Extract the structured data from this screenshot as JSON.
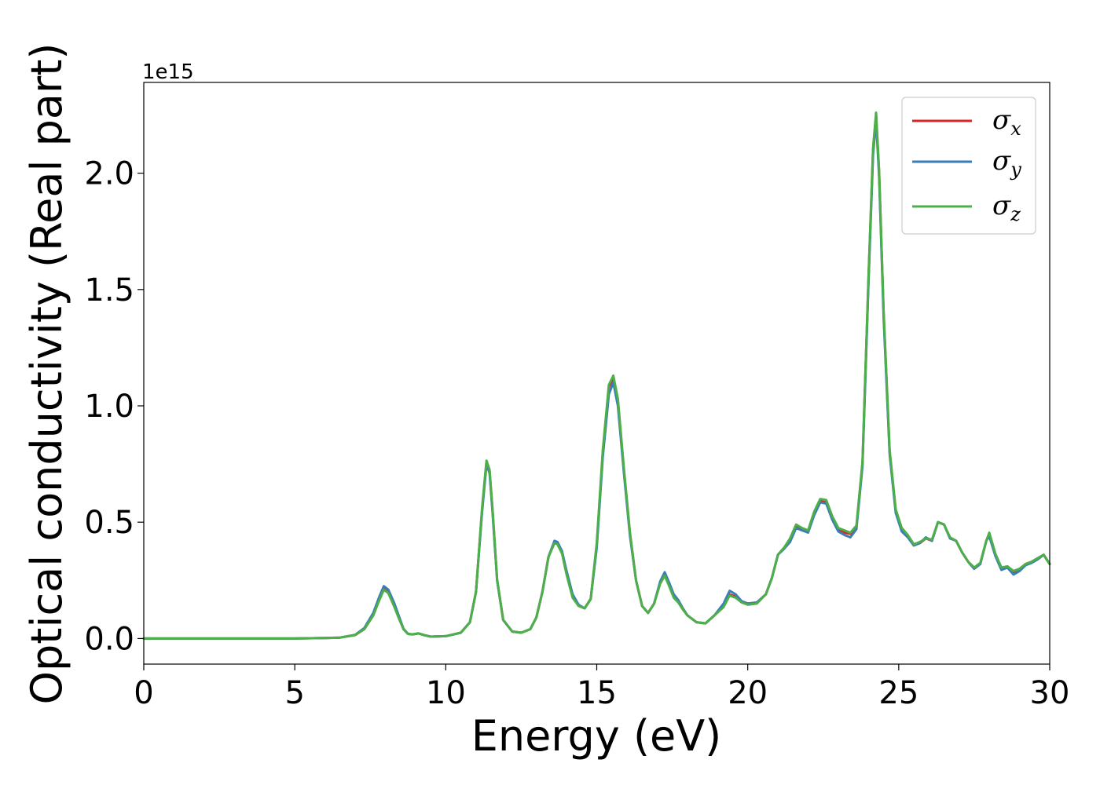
{
  "chart_data": {
    "type": "line",
    "xlabel": "Energy (eV)",
    "ylabel": "Optical conductivity (Real part)",
    "y_offset_text": "1e15",
    "y_scale": 1000000000000000.0,
    "xlim": [
      0,
      30
    ],
    "ylim": [
      -0.11,
      2.39
    ],
    "x_ticks": [
      0,
      5,
      10,
      15,
      20,
      25,
      30
    ],
    "x_tick_labels": [
      "0",
      "5",
      "10",
      "15",
      "20",
      "25",
      "30"
    ],
    "y_ticks": [
      0.0,
      0.5,
      1.0,
      1.5,
      2.0
    ],
    "y_tick_labels": [
      "0.0",
      "0.5",
      "1.0",
      "1.5",
      "2.0"
    ],
    "grid": false,
    "legend_position": "top-right",
    "series": [
      {
        "name": "σx",
        "legend_base": "σ",
        "legend_sub": "x",
        "color": "#d62728",
        "x": [
          0,
          5,
          6,
          6.5,
          7.0,
          7.3,
          7.6,
          7.8,
          7.95,
          8.1,
          8.3,
          8.45,
          8.6,
          8.75,
          8.9,
          9.1,
          9.3,
          9.5,
          10.0,
          10.5,
          10.8,
          11.0,
          11.2,
          11.35,
          11.45,
          11.55,
          11.7,
          11.9,
          12.2,
          12.5,
          12.8,
          13.0,
          13.2,
          13.4,
          13.6,
          13.7,
          13.85,
          14.0,
          14.2,
          14.4,
          14.6,
          14.8,
          15.0,
          15.2,
          15.4,
          15.55,
          15.7,
          15.9,
          16.1,
          16.3,
          16.5,
          16.7,
          16.9,
          17.1,
          17.25,
          17.4,
          17.55,
          17.7,
          17.85,
          18.0,
          18.3,
          18.6,
          18.9,
          19.2,
          19.4,
          19.6,
          19.8,
          20.0,
          20.3,
          20.6,
          20.8,
          21.0,
          21.2,
          21.4,
          21.6,
          21.8,
          22.0,
          22.2,
          22.4,
          22.6,
          22.8,
          23.0,
          23.2,
          23.4,
          23.6,
          23.8,
          24.0,
          24.15,
          24.25,
          24.35,
          24.5,
          24.7,
          24.9,
          25.1,
          25.3,
          25.5,
          25.7,
          25.9,
          26.1,
          26.3,
          26.5,
          26.7,
          26.9,
          27.1,
          27.3,
          27.5,
          27.7,
          27.9,
          28.0,
          28.2,
          28.4,
          28.6,
          28.8,
          29.0,
          29.2,
          29.4,
          29.6,
          29.8,
          30.0
        ],
        "y": [
          0.0,
          0.0,
          0.002,
          0.004,
          0.015,
          0.04,
          0.1,
          0.17,
          0.215,
          0.2,
          0.14,
          0.09,
          0.04,
          0.02,
          0.018,
          0.022,
          0.014,
          0.008,
          0.01,
          0.025,
          0.07,
          0.2,
          0.55,
          0.76,
          0.72,
          0.55,
          0.25,
          0.08,
          0.03,
          0.025,
          0.04,
          0.09,
          0.2,
          0.35,
          0.415,
          0.41,
          0.37,
          0.28,
          0.18,
          0.14,
          0.13,
          0.17,
          0.4,
          0.8,
          1.08,
          1.12,
          1.02,
          0.72,
          0.45,
          0.25,
          0.14,
          0.11,
          0.15,
          0.24,
          0.275,
          0.23,
          0.18,
          0.16,
          0.13,
          0.1,
          0.07,
          0.065,
          0.1,
          0.14,
          0.19,
          0.18,
          0.16,
          0.15,
          0.155,
          0.19,
          0.26,
          0.36,
          0.39,
          0.42,
          0.48,
          0.47,
          0.46,
          0.54,
          0.595,
          0.59,
          0.52,
          0.47,
          0.455,
          0.45,
          0.48,
          0.75,
          1.55,
          2.1,
          2.25,
          2.0,
          1.4,
          0.8,
          0.55,
          0.47,
          0.44,
          0.4,
          0.41,
          0.43,
          0.42,
          0.5,
          0.49,
          0.43,
          0.42,
          0.37,
          0.33,
          0.3,
          0.32,
          0.42,
          0.45,
          0.36,
          0.3,
          0.31,
          0.285,
          0.3,
          0.32,
          0.33,
          0.34,
          0.36,
          0.32
        ]
      },
      {
        "name": "σy",
        "legend_base": "σ",
        "legend_sub": "y",
        "color": "#3a7eb8",
        "x": [
          0,
          5,
          6,
          6.5,
          7.0,
          7.3,
          7.6,
          7.8,
          7.95,
          8.1,
          8.3,
          8.45,
          8.6,
          8.75,
          8.9,
          9.1,
          9.3,
          9.5,
          10.0,
          10.5,
          10.8,
          11.0,
          11.2,
          11.35,
          11.45,
          11.55,
          11.7,
          11.9,
          12.2,
          12.5,
          12.8,
          13.0,
          13.2,
          13.4,
          13.6,
          13.7,
          13.85,
          14.0,
          14.2,
          14.4,
          14.6,
          14.8,
          15.0,
          15.2,
          15.4,
          15.55,
          15.7,
          15.9,
          16.1,
          16.3,
          16.5,
          16.7,
          16.9,
          17.1,
          17.25,
          17.4,
          17.55,
          17.7,
          17.85,
          18.0,
          18.3,
          18.6,
          18.9,
          19.2,
          19.4,
          19.6,
          19.8,
          20.0,
          20.3,
          20.6,
          20.8,
          21.0,
          21.2,
          21.4,
          21.6,
          21.8,
          22.0,
          22.2,
          22.4,
          22.6,
          22.8,
          23.0,
          23.2,
          23.4,
          23.6,
          23.8,
          24.0,
          24.15,
          24.25,
          24.35,
          24.5,
          24.7,
          24.9,
          25.1,
          25.3,
          25.5,
          25.7,
          25.9,
          26.1,
          26.3,
          26.5,
          26.7,
          26.9,
          27.1,
          27.3,
          27.5,
          27.7,
          27.9,
          28.0,
          28.2,
          28.4,
          28.6,
          28.8,
          29.0,
          29.2,
          29.4,
          29.6,
          29.8,
          30.0
        ],
        "y": [
          0.0,
          0.0,
          0.002,
          0.004,
          0.016,
          0.045,
          0.11,
          0.18,
          0.225,
          0.21,
          0.15,
          0.095,
          0.042,
          0.02,
          0.018,
          0.022,
          0.014,
          0.008,
          0.01,
          0.025,
          0.07,
          0.2,
          0.54,
          0.75,
          0.71,
          0.54,
          0.25,
          0.08,
          0.03,
          0.025,
          0.04,
          0.09,
          0.2,
          0.35,
          0.42,
          0.415,
          0.375,
          0.29,
          0.19,
          0.145,
          0.13,
          0.17,
          0.39,
          0.78,
          1.05,
          1.1,
          1.0,
          0.71,
          0.44,
          0.25,
          0.14,
          0.11,
          0.15,
          0.245,
          0.285,
          0.24,
          0.19,
          0.165,
          0.13,
          0.1,
          0.07,
          0.065,
          0.1,
          0.15,
          0.205,
          0.19,
          0.16,
          0.15,
          0.155,
          0.19,
          0.26,
          0.36,
          0.385,
          0.415,
          0.475,
          0.465,
          0.455,
          0.53,
          0.585,
          0.58,
          0.51,
          0.46,
          0.445,
          0.435,
          0.47,
          0.74,
          1.53,
          2.08,
          2.23,
          1.98,
          1.38,
          0.79,
          0.54,
          0.46,
          0.435,
          0.4,
          0.41,
          0.435,
          0.42,
          0.5,
          0.49,
          0.43,
          0.42,
          0.37,
          0.33,
          0.3,
          0.32,
          0.42,
          0.44,
          0.355,
          0.295,
          0.305,
          0.275,
          0.29,
          0.315,
          0.325,
          0.34,
          0.36,
          0.32
        ]
      },
      {
        "name": "σz",
        "legend_base": "σ",
        "legend_sub": "z",
        "color": "#4daf4a",
        "x": [
          0,
          5,
          6,
          6.5,
          7.0,
          7.3,
          7.6,
          7.8,
          7.95,
          8.1,
          8.3,
          8.45,
          8.6,
          8.75,
          8.9,
          9.1,
          9.3,
          9.5,
          10.0,
          10.5,
          10.8,
          11.0,
          11.2,
          11.35,
          11.45,
          11.55,
          11.7,
          11.9,
          12.2,
          12.5,
          12.8,
          13.0,
          13.2,
          13.4,
          13.6,
          13.7,
          13.85,
          14.0,
          14.2,
          14.4,
          14.6,
          14.8,
          15.0,
          15.2,
          15.4,
          15.55,
          15.7,
          15.9,
          16.1,
          16.3,
          16.5,
          16.7,
          16.9,
          17.1,
          17.25,
          17.4,
          17.55,
          17.7,
          17.85,
          18.0,
          18.3,
          18.6,
          18.9,
          19.2,
          19.4,
          19.6,
          19.8,
          20.0,
          20.3,
          20.6,
          20.8,
          21.0,
          21.2,
          21.4,
          21.6,
          21.8,
          22.0,
          22.2,
          22.4,
          22.6,
          22.8,
          23.0,
          23.2,
          23.4,
          23.6,
          23.8,
          24.0,
          24.15,
          24.25,
          24.35,
          24.5,
          24.7,
          24.9,
          25.1,
          25.3,
          25.5,
          25.7,
          25.9,
          26.1,
          26.3,
          26.5,
          26.7,
          26.9,
          27.1,
          27.3,
          27.5,
          27.7,
          27.9,
          28.0,
          28.2,
          28.4,
          28.6,
          28.8,
          29.0,
          29.2,
          29.4,
          29.6,
          29.8,
          30.0
        ],
        "y": [
          0.0,
          0.0,
          0.002,
          0.004,
          0.015,
          0.04,
          0.1,
          0.165,
          0.21,
          0.195,
          0.135,
          0.085,
          0.04,
          0.02,
          0.018,
          0.022,
          0.014,
          0.008,
          0.01,
          0.025,
          0.07,
          0.2,
          0.56,
          0.765,
          0.725,
          0.555,
          0.255,
          0.08,
          0.03,
          0.025,
          0.04,
          0.09,
          0.2,
          0.35,
          0.41,
          0.405,
          0.365,
          0.275,
          0.175,
          0.14,
          0.13,
          0.17,
          0.41,
          0.81,
          1.09,
          1.13,
          1.03,
          0.73,
          0.455,
          0.25,
          0.14,
          0.11,
          0.15,
          0.235,
          0.27,
          0.225,
          0.175,
          0.155,
          0.125,
          0.1,
          0.07,
          0.065,
          0.1,
          0.135,
          0.185,
          0.175,
          0.155,
          0.145,
          0.15,
          0.19,
          0.26,
          0.36,
          0.39,
          0.43,
          0.49,
          0.475,
          0.465,
          0.545,
          0.6,
          0.595,
          0.525,
          0.475,
          0.465,
          0.455,
          0.485,
          0.76,
          1.56,
          2.11,
          2.26,
          2.01,
          1.41,
          0.81,
          0.555,
          0.475,
          0.445,
          0.405,
          0.415,
          0.43,
          0.425,
          0.5,
          0.49,
          0.435,
          0.42,
          0.37,
          0.33,
          0.305,
          0.325,
          0.42,
          0.455,
          0.365,
          0.305,
          0.31,
          0.29,
          0.3,
          0.32,
          0.33,
          0.345,
          0.36,
          0.32
        ]
      }
    ]
  }
}
